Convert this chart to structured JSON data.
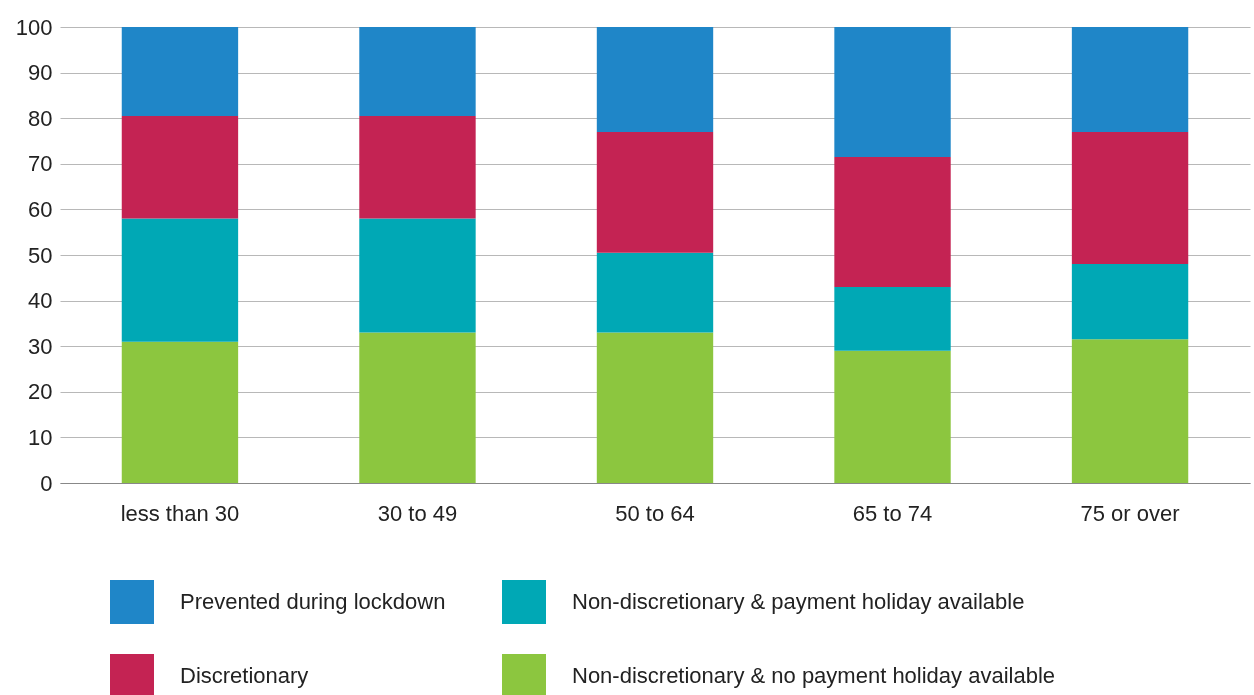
{
  "chart_data": {
    "type": "bar",
    "stacked": true,
    "categories": [
      "less than 30",
      "30 to 49",
      "50 to 64",
      "65 to 74",
      "75 or over"
    ],
    "series": [
      {
        "name": "Non-discretionary & no payment holiday available",
        "color": "#8cc63f",
        "values": [
          31,
          33,
          33,
          29,
          31.5
        ]
      },
      {
        "name": "Non-discretionary & payment holiday available",
        "color": "#00a8b5",
        "values": [
          27,
          25,
          17.5,
          14,
          16.5
        ]
      },
      {
        "name": "Discretionary",
        "color": "#c42353",
        "values": [
          22.5,
          22.5,
          26.5,
          28.5,
          29
        ]
      },
      {
        "name": "Prevented during lockdown",
        "color": "#1f86c8",
        "values": [
          19.5,
          19.5,
          23,
          28.5,
          23
        ]
      }
    ],
    "ylim": [
      0,
      100
    ],
    "yticks": [
      0,
      10,
      20,
      30,
      40,
      50,
      60,
      70,
      80,
      90,
      100
    ],
    "grid": "y",
    "legend": "bottom"
  }
}
